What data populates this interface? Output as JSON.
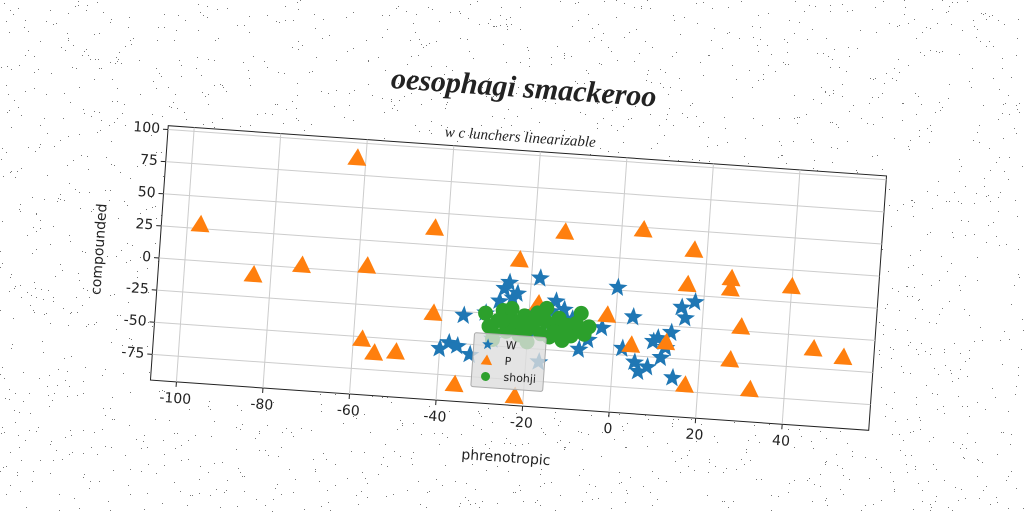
{
  "chart_data": {
    "type": "scatter",
    "title": "oesophagi smackeroo",
    "subtitle": "w c lunchers linearizable",
    "xlabel": "phrenotropic",
    "ylabel": "compounded",
    "xlim": [
      -106,
      60
    ],
    "ylim": [
      -95,
      103
    ],
    "xticks": [
      -100,
      -80,
      -60,
      -40,
      -20,
      0,
      20,
      40
    ],
    "yticks": [
      -75,
      -50,
      -25,
      0,
      25,
      50,
      75,
      100
    ],
    "grid": true,
    "legend": "lower center",
    "series": [
      {
        "name": "W",
        "color": "#1f77b4",
        "marker": "star",
        "x": [
          -40,
          -38,
          -35,
          -33,
          -30,
          -28,
          -26,
          -25,
          -24,
          -23,
          -22,
          -20,
          -18,
          -17,
          -15,
          -14,
          -12,
          -10,
          -8,
          -6,
          -3,
          0,
          2,
          4,
          6,
          8,
          9,
          10,
          11,
          12,
          13,
          14,
          15,
          16,
          18,
          -36,
          -27,
          -16,
          5,
          -19
        ],
        "values": [
          -55,
          -50,
          -28,
          -58,
          -25,
          -45,
          -5,
          0,
          -12,
          -8,
          -35,
          -40,
          5,
          -60,
          -20,
          -12,
          -18,
          -25,
          -48,
          -40,
          -30,
          2,
          -45,
          -20,
          -62,
          -58,
          -38,
          -35,
          -50,
          -42,
          -30,
          -65,
          -10,
          -18,
          -5,
          -52,
          -15,
          -30,
          -55,
          -22
        ]
      },
      {
        "name": "P",
        "color": "#ff7f0e",
        "marker": "triangle",
        "x": [
          -97,
          -84,
          -73,
          -62,
          -58,
          -43,
          -58,
          -55,
          -50,
          -42,
          -36,
          -23,
          -13,
          -22,
          5,
          -2,
          4,
          12,
          17,
          16,
          26,
          26,
          40,
          29,
          27,
          32,
          17,
          46,
          53,
          -18
        ],
        "values": [
          28,
          -8,
          2,
          88,
          5,
          38,
          -52,
          -62,
          -60,
          -28,
          -82,
          18,
          42,
          -88,
          48,
          -20,
          -42,
          -38,
          35,
          8,
          15,
          7,
          12,
          -22,
          -48,
          -70,
          -70,
          -35,
          -40,
          -15
        ]
      },
      {
        "name": "shohji",
        "color": "#2ca02c",
        "marker": "circle",
        "x": [
          -30,
          -29,
          -28,
          -27,
          -26,
          -25,
          -24,
          -23,
          -22,
          -21,
          -20,
          -19,
          -18,
          -17,
          -16,
          -15,
          -14,
          -13,
          -12,
          -11,
          -10,
          -9,
          -8,
          -7,
          -6,
          -28,
          -24,
          -20,
          -16,
          -12,
          -8,
          -26,
          -18,
          -14,
          -22
        ],
        "values": [
          -25,
          -35,
          -40,
          -30,
          -22,
          -38,
          -28,
          -33,
          -40,
          -25,
          -35,
          -30,
          -22,
          -38,
          -28,
          -40,
          -32,
          -25,
          -35,
          -30,
          -38,
          -28,
          -32,
          -36,
          -30,
          -45,
          -20,
          -45,
          -18,
          -42,
          -20,
          -30,
          -27,
          -36,
          -30
        ]
      }
    ]
  }
}
